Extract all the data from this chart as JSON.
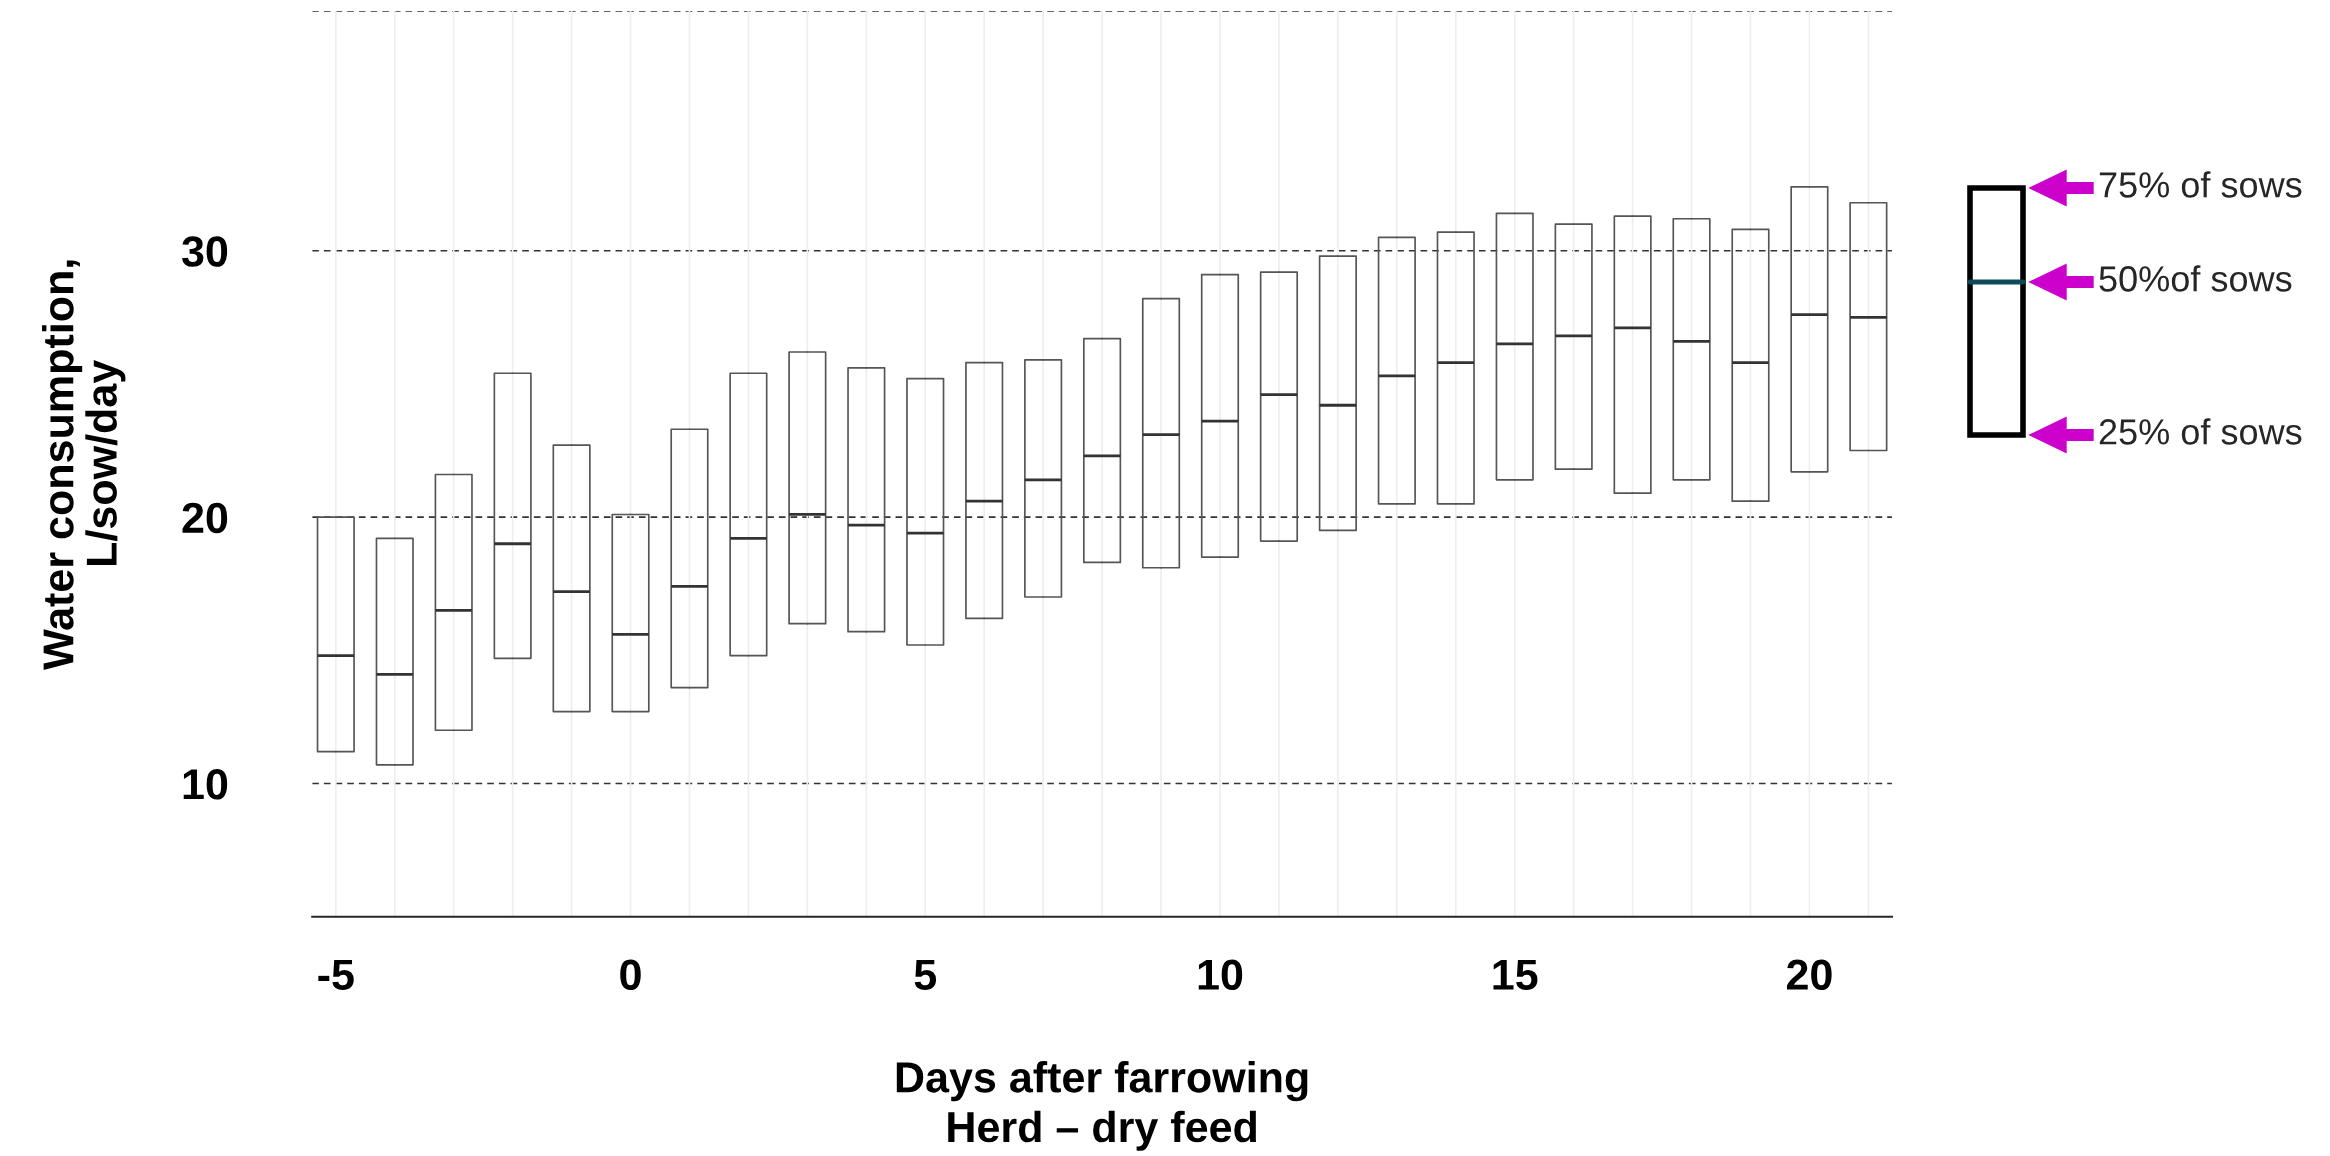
{
  "chart_data": {
    "type": "box",
    "xlabel": "Days after farrowing\nHerd – dry feed",
    "ylabel": "Water consumption,\nL/sow/day",
    "x": [
      -5,
      -4,
      -3,
      -2,
      -1,
      0,
      1,
      2,
      3,
      4,
      5,
      6,
      7,
      8,
      9,
      10,
      11,
      12,
      13,
      14,
      15,
      16,
      17,
      18,
      19,
      20,
      21
    ],
    "boxes": [
      {
        "q1": 11.2,
        "median": 14.8,
        "q3": 20.0
      },
      {
        "q1": 10.7,
        "median": 14.1,
        "q3": 19.2
      },
      {
        "q1": 12.0,
        "median": 16.5,
        "q3": 21.6
      },
      {
        "q1": 14.7,
        "median": 19.0,
        "q3": 25.4
      },
      {
        "q1": 12.7,
        "median": 17.2,
        "q3": 22.7
      },
      {
        "q1": 12.7,
        "median": 15.6,
        "q3": 20.1
      },
      {
        "q1": 13.6,
        "median": 17.4,
        "q3": 23.3
      },
      {
        "q1": 14.8,
        "median": 19.2,
        "q3": 25.4
      },
      {
        "q1": 16.0,
        "median": 20.1,
        "q3": 26.2
      },
      {
        "q1": 15.7,
        "median": 19.7,
        "q3": 25.6
      },
      {
        "q1": 15.2,
        "median": 19.4,
        "q3": 25.2
      },
      {
        "q1": 16.2,
        "median": 20.6,
        "q3": 25.8
      },
      {
        "q1": 17.0,
        "median": 21.4,
        "q3": 25.9
      },
      {
        "q1": 18.3,
        "median": 22.3,
        "q3": 26.7
      },
      {
        "q1": 18.1,
        "median": 23.1,
        "q3": 28.2
      },
      {
        "q1": 18.5,
        "median": 23.6,
        "q3": 29.1
      },
      {
        "q1": 19.1,
        "median": 24.6,
        "q3": 29.2
      },
      {
        "q1": 19.5,
        "median": 24.2,
        "q3": 29.8
      },
      {
        "q1": 20.5,
        "median": 25.3,
        "q3": 30.5
      },
      {
        "q1": 20.5,
        "median": 25.8,
        "q3": 30.7
      },
      {
        "q1": 21.4,
        "median": 26.5,
        "q3": 31.4
      },
      {
        "q1": 21.8,
        "median": 26.8,
        "q3": 31.0
      },
      {
        "q1": 20.9,
        "median": 27.1,
        "q3": 31.3
      },
      {
        "q1": 21.4,
        "median": 26.6,
        "q3": 31.2
      },
      {
        "q1": 20.6,
        "median": 25.8,
        "q3": 30.8
      },
      {
        "q1": 21.7,
        "median": 27.6,
        "q3": 32.4
      },
      {
        "q1": 22.5,
        "median": 27.5,
        "q3": 31.8
      }
    ],
    "xlim": [
      -5.4,
      21.4
    ],
    "xticks": [
      -5,
      0,
      5,
      10,
      15,
      20
    ],
    "ylim": [
      5,
      39
    ],
    "yticks": [
      10,
      20,
      30,
      {
        "value": 39,
        "label": null
      }
    ],
    "grid": true,
    "annotations": [
      "75% of sows",
      "50%of sows",
      "25% of sows"
    ]
  }
}
